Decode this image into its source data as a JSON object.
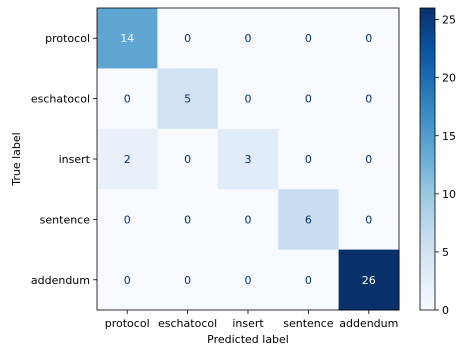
{
  "chart_data": {
    "type": "heatmap",
    "title": "",
    "xlabel": "Predicted label",
    "ylabel": "True label",
    "x_categories": [
      "protocol",
      "eschatocol",
      "insert",
      "sentence",
      "addendum"
    ],
    "y_categories": [
      "protocol",
      "eschatocol",
      "insert",
      "sentence",
      "addendum"
    ],
    "values": [
      [
        14,
        0,
        0,
        0,
        0
      ],
      [
        0,
        5,
        0,
        0,
        0
      ],
      [
        2,
        0,
        3,
        0,
        0
      ],
      [
        0,
        0,
        0,
        6,
        0
      ],
      [
        0,
        0,
        0,
        0,
        26
      ]
    ],
    "colormap": "Blues",
    "colorbar": {
      "min": 0,
      "max": 26,
      "ticks": [
        0,
        5,
        10,
        15,
        20,
        25
      ],
      "tick_labels": [
        "0",
        "5",
        "10",
        "15",
        "20",
        "25"
      ]
    },
    "colors": {
      "low": "#f7fbff",
      "high": "#08306b",
      "text_dark": "#08306b",
      "text_light": "#ffffff"
    }
  }
}
